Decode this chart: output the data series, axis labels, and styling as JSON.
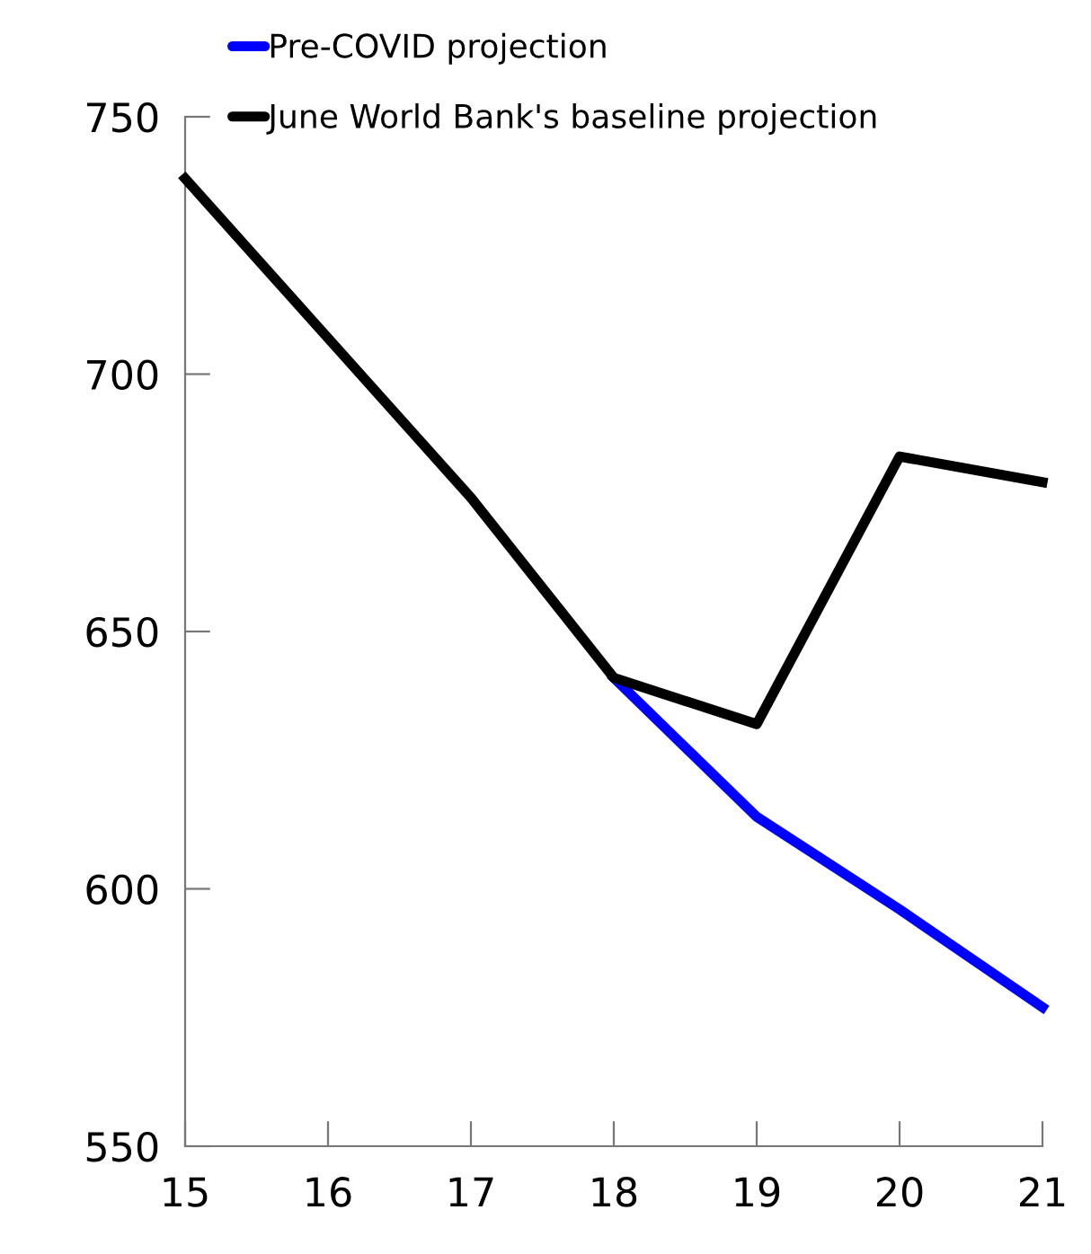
{
  "chart_data": {
    "type": "line",
    "x": [
      15,
      16,
      17,
      18,
      19,
      20,
      21
    ],
    "series": [
      {
        "name": "Pre-COVID projection",
        "color": "#0000ff",
        "x": [
          18,
          19,
          20,
          21
        ],
        "values": [
          641,
          614,
          596,
          577
        ]
      },
      {
        "name": "June World Bank's baseline projection",
        "color": "#000000",
        "values": [
          738,
          707,
          676,
          641,
          632,
          684,
          679
        ]
      }
    ],
    "xlim": [
      15,
      21
    ],
    "xticks": [
      15,
      16,
      17,
      18,
      19,
      20,
      21
    ],
    "ylim": [
      550,
      750
    ],
    "yticks": [
      550,
      600,
      650,
      700,
      750
    ],
    "grid": false,
    "legend": "top left",
    "marker": "none",
    "line_style": "solid"
  }
}
